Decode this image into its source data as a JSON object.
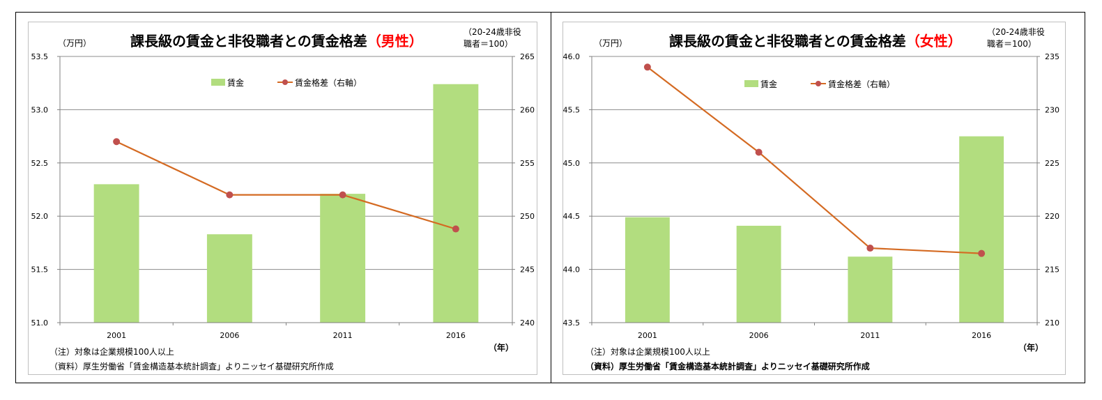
{
  "charts": [
    {
      "id": "male",
      "title": "課長級の賃金と非役職者との賃金格差",
      "title_highlight": "（男性）",
      "y_left_unit": "（万円）",
      "y_right_unit": "（20-24歳非役\n職者＝100）",
      "x_unit": "（年）",
      "note1": "（注）対象は企業規模100人以上",
      "note2": "（資料）厚生労働省「賃金構造基本統計調査」よりニッセイ基礎研究所作成",
      "legend_bar": "賃金",
      "legend_line": "賃金格差（右軸）"
    },
    {
      "id": "female",
      "title": "課長級の賃金と非役職者との賃金格差",
      "title_highlight": "（女性）",
      "y_left_unit": "（万円）",
      "y_right_unit": "（20-24歳非役\n職者＝100）",
      "x_unit": "（年）",
      "note1": "（注）対象は企業規模100人以上",
      "note2": "（資料）厚生労働省「賃金構造基本統計調査」よりニッセイ基礎研究所作成",
      "legend_bar": "賃金",
      "legend_line": "賃金格差（右軸）"
    }
  ],
  "colors": {
    "bar": "#b2dd7f",
    "line": "#d46a22",
    "marker": "#c0504d",
    "grid": "#8c8c8c"
  },
  "chart_data": [
    {
      "type": "bar",
      "title": "課長級の賃金と非役職者との賃金格差（男性）",
      "categories": [
        "2001",
        "2006",
        "2011",
        "2016"
      ],
      "xlabel": "（年）",
      "series": [
        {
          "name": "賃金",
          "type": "bar",
          "axis": "left",
          "values": [
            52.3,
            51.83,
            52.21,
            53.24
          ]
        },
        {
          "name": "賃金格差（右軸）",
          "type": "line",
          "axis": "right",
          "values": [
            257.0,
            252.0,
            252.0,
            248.8
          ]
        }
      ],
      "y_left": {
        "label": "（万円）",
        "min": 51.0,
        "max": 53.5,
        "step": 0.5,
        "ticks": [
          "51.0",
          "51.5",
          "52.0",
          "52.5",
          "53.0",
          "53.5"
        ]
      },
      "y_right": {
        "label": "（20-24歳非役職者＝100）",
        "min": 240,
        "max": 265,
        "step": 5,
        "ticks": [
          "240",
          "245",
          "250",
          "255",
          "260",
          "265"
        ]
      },
      "grid": true,
      "legend_position": "top-center"
    },
    {
      "type": "bar",
      "title": "課長級の賃金と非役職者との賃金格差（女性）",
      "categories": [
        "2001",
        "2006",
        "2011",
        "2016"
      ],
      "xlabel": "（年）",
      "series": [
        {
          "name": "賃金",
          "type": "bar",
          "axis": "left",
          "values": [
            44.49,
            44.41,
            44.12,
            45.25
          ]
        },
        {
          "name": "賃金格差（右軸）",
          "type": "line",
          "axis": "right",
          "values": [
            234.0,
            226.0,
            217.0,
            216.5
          ]
        }
      ],
      "y_left": {
        "label": "（万円）",
        "min": 43.5,
        "max": 46.0,
        "step": 0.5,
        "ticks": [
          "43.5",
          "44.0",
          "44.5",
          "45.0",
          "45.5",
          "46.0"
        ]
      },
      "y_right": {
        "label": "（20-24歳非役職者＝100）",
        "min": 210,
        "max": 235,
        "step": 5,
        "ticks": [
          "210",
          "215",
          "220",
          "225",
          "230",
          "235"
        ]
      },
      "grid": true,
      "legend_position": "top-center"
    }
  ]
}
